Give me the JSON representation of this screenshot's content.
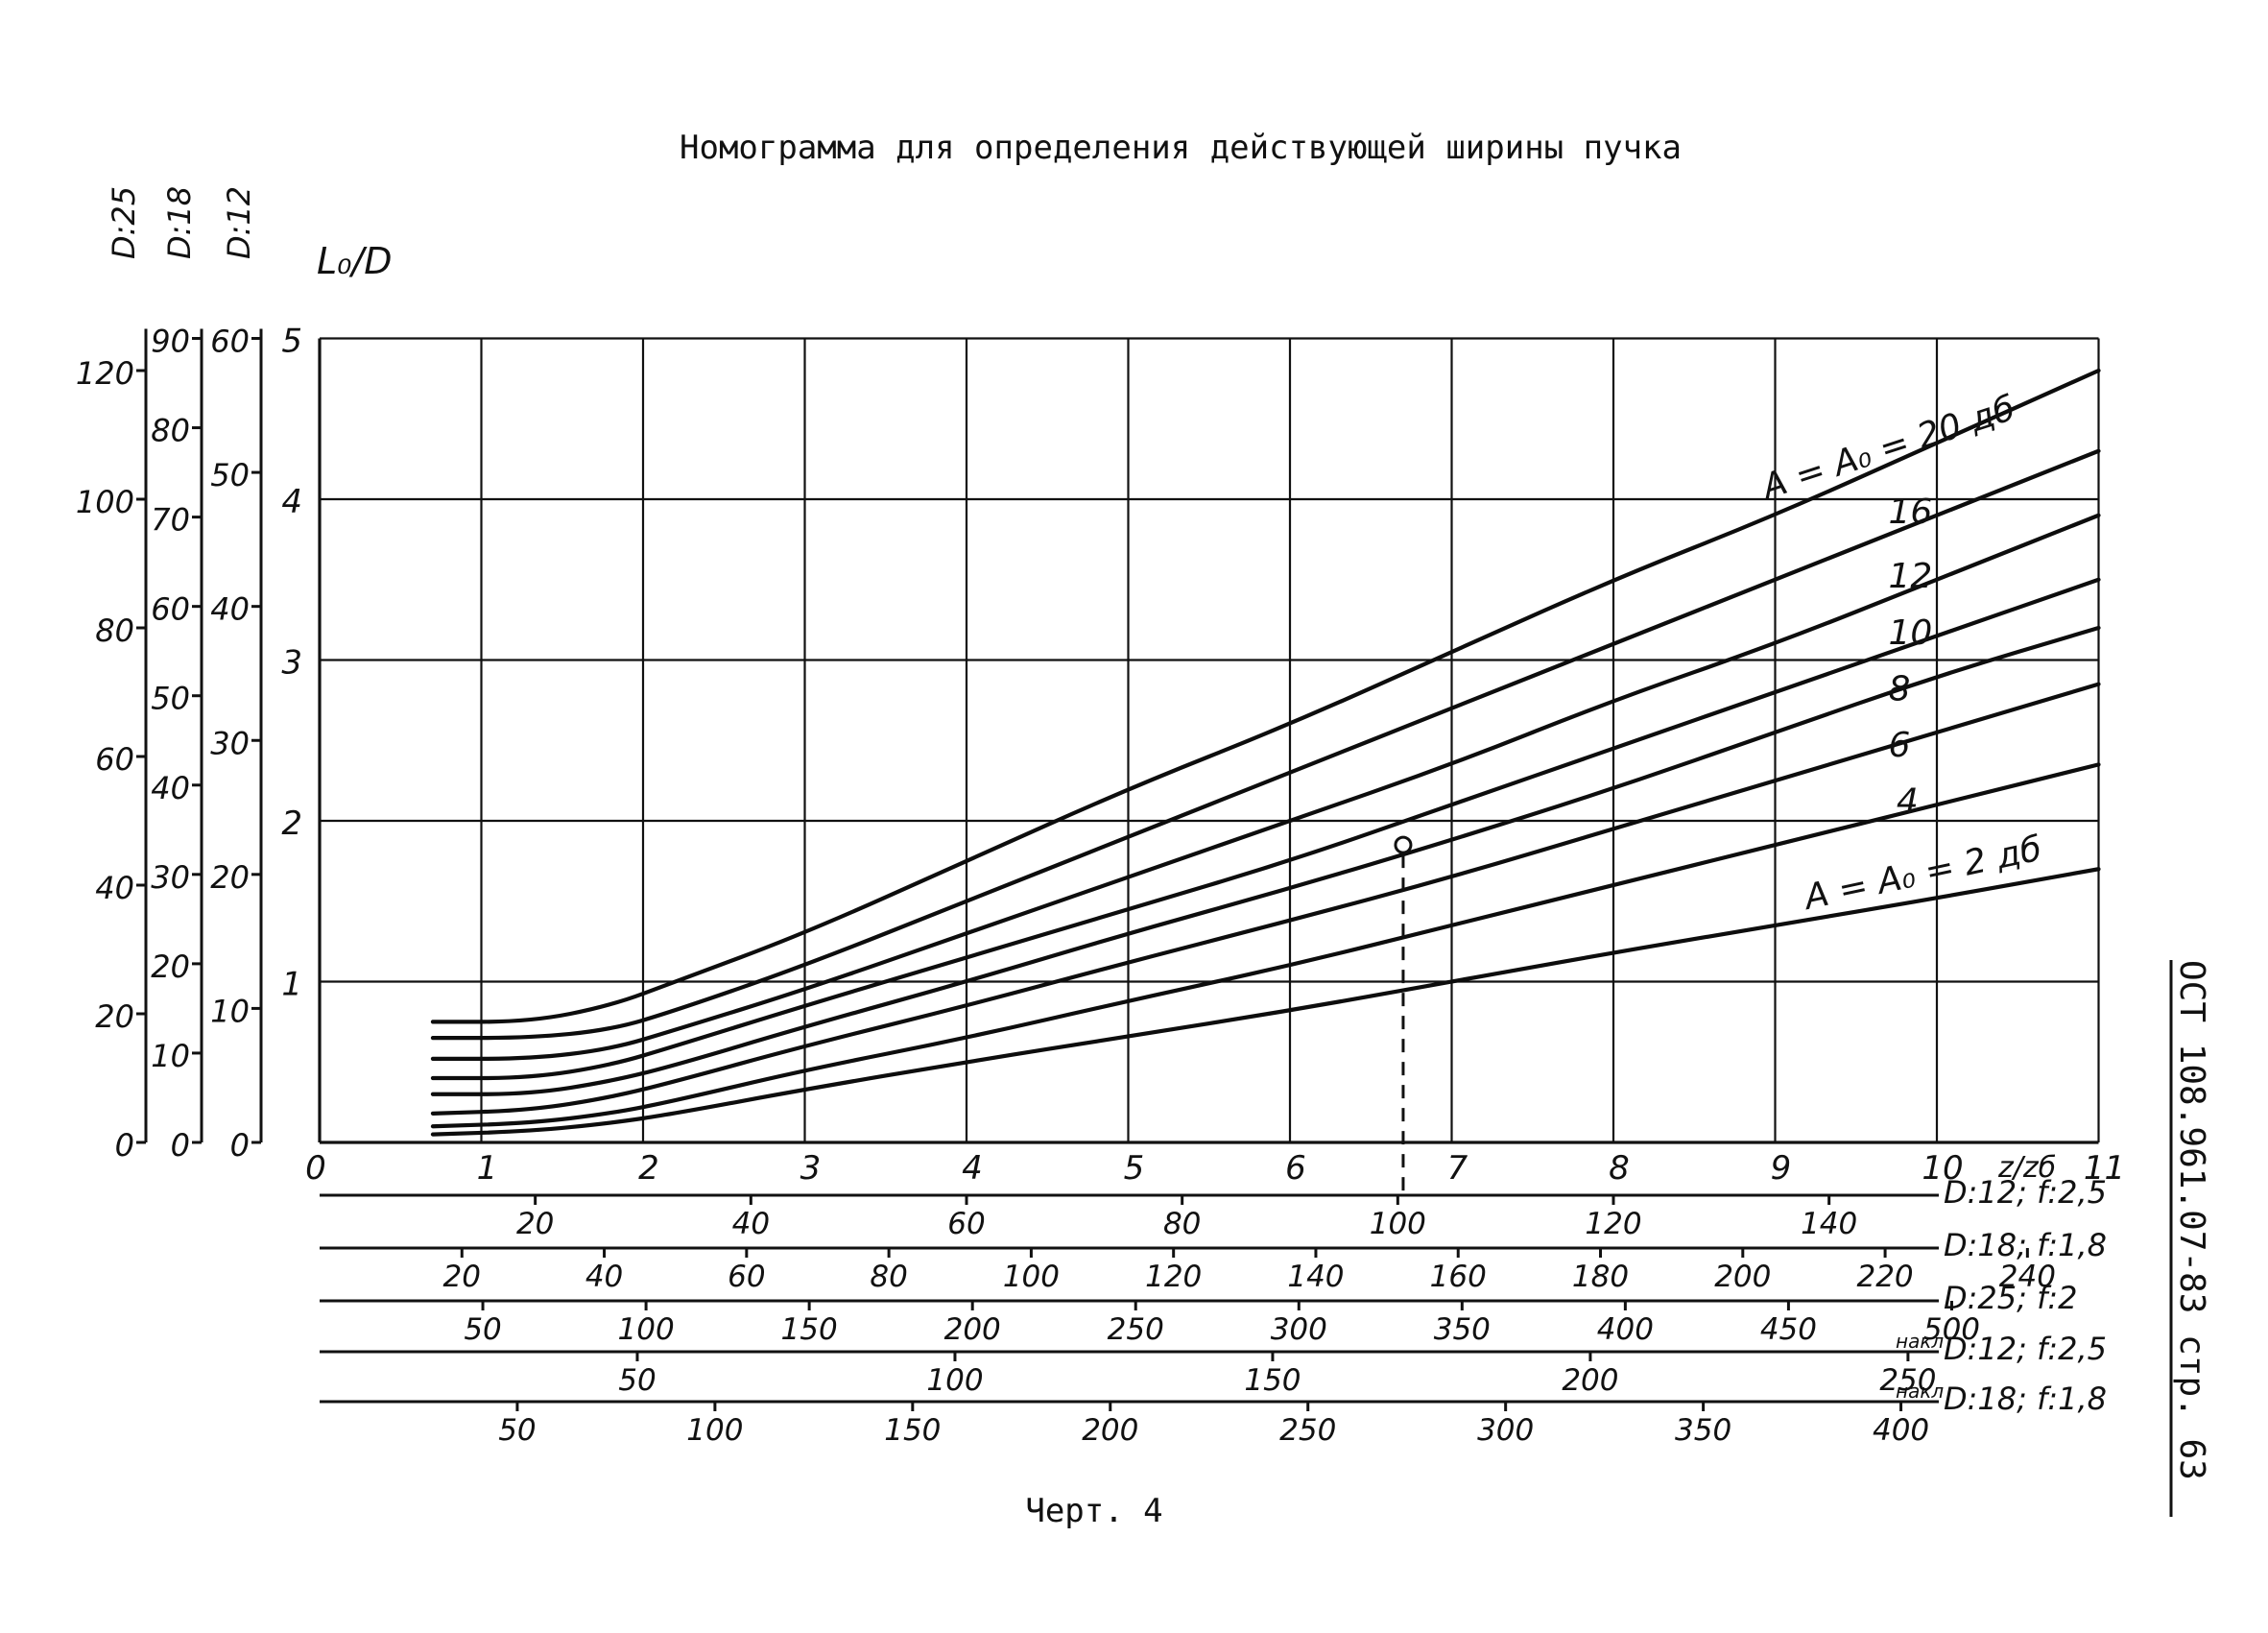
{
  "page": {
    "title": "Номограмма для определения действующей ширины пучка",
    "caption": "Черт. 4",
    "side_stamp": "ОСТ 108.961.07-83  стр. 63"
  },
  "chart_data": {
    "type": "line",
    "title": "Номограмма для определения действующей ширины пучка",
    "ylabel": "L₀/D",
    "xlabel": "z/zб",
    "xlim": [
      0,
      11
    ],
    "ylim": [
      0,
      5
    ],
    "x_ticks": [
      "0",
      "1",
      "2",
      "3",
      "4",
      "5",
      "6",
      "7",
      "8",
      "9",
      "10",
      "11"
    ],
    "y_ticks": [
      "1",
      "2",
      "3",
      "4",
      "5"
    ],
    "grid": true,
    "series": [
      {
        "name": "A = A₀ = 20 дб",
        "label": "A = A₀ = 20 дб",
        "x": [
          0.7,
          1.3,
          1.8,
          2.2,
          3.0,
          4.0,
          5.0,
          6.0,
          7.0,
          8.0,
          9.0,
          10.0,
          11.0
        ],
        "y": [
          0.75,
          0.75,
          0.85,
          1.0,
          1.3,
          1.75,
          2.2,
          2.6,
          3.05,
          3.5,
          3.9,
          4.35,
          4.8
        ]
      },
      {
        "name": "16",
        "label": "16",
        "x": [
          0.7,
          1.3,
          1.8,
          2.2,
          3.0,
          4.0,
          5.0,
          6.0,
          7.0,
          8.0,
          9.0,
          10.0,
          11.0
        ],
        "y": [
          0.65,
          0.65,
          0.7,
          0.82,
          1.1,
          1.5,
          1.9,
          2.3,
          2.7,
          3.1,
          3.5,
          3.9,
          4.3
        ]
      },
      {
        "name": "12",
        "label": "12",
        "x": [
          0.7,
          1.3,
          1.8,
          2.2,
          3.0,
          4.0,
          5.0,
          6.0,
          7.0,
          8.0,
          9.0,
          10.0,
          11.0
        ],
        "y": [
          0.52,
          0.52,
          0.58,
          0.7,
          0.95,
          1.3,
          1.65,
          2.0,
          2.35,
          2.75,
          3.1,
          3.5,
          3.9
        ]
      },
      {
        "name": "10",
        "label": "10",
        "x": [
          0.7,
          1.3,
          1.8,
          2.2,
          3.0,
          4.0,
          5.0,
          6.0,
          7.0,
          8.0,
          9.0,
          10.0,
          11.0
        ],
        "y": [
          0.4,
          0.4,
          0.48,
          0.6,
          0.85,
          1.15,
          1.45,
          1.75,
          2.1,
          2.45,
          2.8,
          3.15,
          3.5
        ]
      },
      {
        "name": "8",
        "label": "8",
        "x": [
          0.7,
          1.3,
          1.8,
          2.2,
          3.0,
          4.0,
          5.0,
          6.0,
          7.0,
          8.0,
          9.0,
          10.0,
          11.0
        ],
        "y": [
          0.3,
          0.3,
          0.38,
          0.48,
          0.72,
          1.0,
          1.3,
          1.58,
          1.88,
          2.2,
          2.55,
          2.9,
          3.2
        ]
      },
      {
        "name": "6",
        "label": "6",
        "x": [
          0.7,
          1.3,
          1.8,
          2.2,
          3.0,
          4.0,
          5.0,
          6.0,
          7.0,
          8.0,
          9.0,
          10.0,
          11.0
        ],
        "y": [
          0.18,
          0.2,
          0.28,
          0.38,
          0.6,
          0.85,
          1.12,
          1.38,
          1.65,
          1.95,
          2.25,
          2.55,
          2.85
        ]
      },
      {
        "name": "4",
        "label": "4",
        "x": [
          0.7,
          1.3,
          1.8,
          2.2,
          3.0,
          4.0,
          5.0,
          6.0,
          7.0,
          8.0,
          9.0,
          10.0,
          11.0
        ],
        "y": [
          0.1,
          0.12,
          0.18,
          0.26,
          0.45,
          0.65,
          0.88,
          1.1,
          1.35,
          1.6,
          1.85,
          2.1,
          2.35
        ]
      },
      {
        "name": "A = A₀ = 2 дб",
        "label": "A = A₀ = 2 дб",
        "x": [
          0.7,
          1.3,
          1.8,
          2.2,
          3.0,
          4.0,
          5.0,
          6.0,
          7.0,
          8.0,
          9.0,
          10.0,
          11.0
        ],
        "y": [
          0.05,
          0.07,
          0.12,
          0.18,
          0.33,
          0.5,
          0.66,
          0.82,
          1.0,
          1.18,
          1.35,
          1.52,
          1.7
        ]
      }
    ],
    "annotation_point": {
      "x": 6.7,
      "y": 1.85
    },
    "left_scales": [
      {
        "name": "D:25",
        "ticks": [
          "0",
          "20",
          "40",
          "60",
          "80",
          "100",
          "120"
        ],
        "values": [
          0,
          20,
          40,
          60,
          80,
          100,
          120
        ],
        "max_at_y5": 125
      },
      {
        "name": "D:18",
        "ticks": [
          "0",
          "10",
          "20",
          "30",
          "40",
          "50",
          "60",
          "70",
          "80",
          "90"
        ],
        "values": [
          0,
          10,
          20,
          30,
          40,
          50,
          60,
          70,
          80,
          90
        ],
        "max_at_y5": 90
      },
      {
        "name": "D:12",
        "ticks": [
          "0",
          "10",
          "20",
          "30",
          "40",
          "50",
          "60"
        ],
        "values": [
          0,
          10,
          20,
          30,
          40,
          50,
          60
        ],
        "max_at_y5": 60
      }
    ],
    "bottom_scales": [
      {
        "name": "D:12; f:2,5",
        "ticks": [
          "20",
          "40",
          "60",
          "80",
          "100",
          "120",
          "140"
        ],
        "values": [
          20,
          40,
          60,
          80,
          100,
          120,
          140
        ],
        "max_at_x11": 165
      },
      {
        "name": "D:18; f:1,8",
        "ticks": [
          "20",
          "40",
          "60",
          "80",
          "100",
          "120",
          "140",
          "160",
          "180",
          "200",
          "220",
          "240"
        ],
        "values": [
          20,
          40,
          60,
          80,
          100,
          120,
          140,
          160,
          180,
          200,
          220,
          240
        ],
        "max_at_x11": 250
      },
      {
        "name": "D:25; f:2",
        "ticks": [
          "50",
          "100",
          "150",
          "200",
          "250",
          "300",
          "350",
          "400",
          "450",
          "500"
        ],
        "values": [
          50,
          100,
          150,
          200,
          250,
          300,
          350,
          400,
          450,
          500
        ],
        "max_at_x11": 545
      },
      {
        "name": "D:12; f:2,5",
        "prefix": "накл",
        "ticks": [
          "50",
          "100",
          "150",
          "200",
          "250"
        ],
        "values": [
          50,
          100,
          150,
          200,
          250
        ],
        "max_at_x11": 280
      },
      {
        "name": "D:18; f:1,8",
        "prefix": "накл",
        "ticks": [
          "50",
          "100",
          "150",
          "200",
          "250",
          "300",
          "350",
          "400"
        ],
        "values": [
          50,
          100,
          150,
          200,
          250,
          300,
          350,
          400
        ],
        "max_at_x11": 450
      }
    ]
  }
}
